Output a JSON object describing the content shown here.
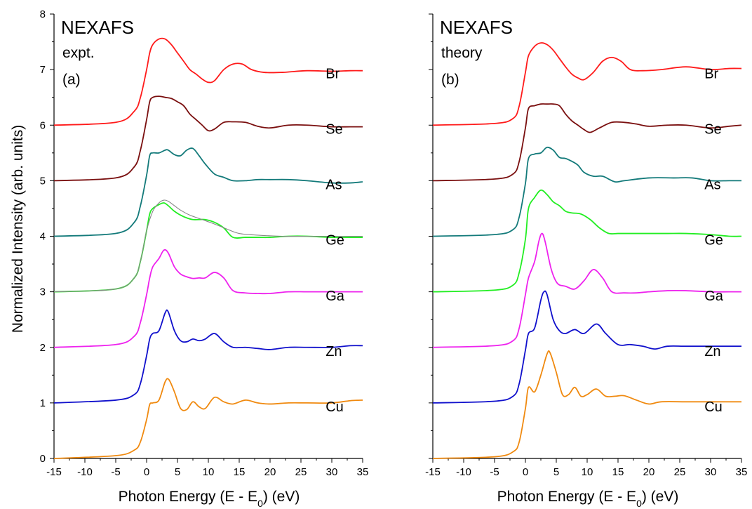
{
  "ylabel": "Normalized Intensity (arb. units)",
  "xlabel_main": "Photon Energy (E - E",
  "xlabel_sub": "0",
  "xlabel_end": ") (eV)",
  "panels": [
    {
      "title": "NEXAFS",
      "subtitle": "expt.",
      "tag": "(a)"
    },
    {
      "title": "NEXAFS",
      "subtitle": "theory",
      "tag": "(b)"
    }
  ],
  "colors": {
    "Br": "#ff1a1a",
    "Se": "#7a0f0f",
    "As": "#137a7a",
    "Ge": "#22ee22",
    "Ga": "#ee22ee",
    "Zn": "#1010cc",
    "Cu": "#f08a10",
    "Ge_ref": "#888888"
  },
  "chart_data": [
    {
      "type": "line",
      "panel": "(a)",
      "xlabel": "Photon Energy (E - E0) (eV)",
      "ylabel": "Normalized Intensity (arb. units)",
      "xlim": [
        -15,
        35
      ],
      "ylim": [
        0,
        8
      ],
      "xticks": [
        -15,
        -10,
        -5,
        0,
        5,
        10,
        15,
        20,
        25,
        30,
        35
      ],
      "yticks": [
        0,
        1,
        2,
        3,
        4,
        5,
        6,
        7,
        8
      ],
      "series": [
        {
          "name": "Cu",
          "offset": 0,
          "x": [
            -15,
            -5,
            -2,
            -1,
            0,
            0.5,
            1,
            2,
            3,
            3.6,
            4.5,
            5.5,
            6.5,
            7.5,
            8.5,
            9.5,
            11,
            12.5,
            14,
            16,
            18,
            20,
            23,
            26,
            30,
            33,
            35
          ],
          "y": [
            0,
            0.05,
            0.15,
            0.3,
            0.7,
            0.97,
            1.0,
            1.05,
            1.38,
            1.42,
            1.2,
            0.9,
            0.88,
            1.02,
            0.93,
            0.9,
            1.1,
            1.02,
            0.98,
            1.05,
            1.0,
            0.98,
            1.0,
            1.0,
            1.0,
            1.04,
            1.05
          ]
        },
        {
          "name": "Zn",
          "offset": 1,
          "x": [
            -15,
            -5,
            -2,
            -1,
            0,
            0.5,
            1,
            2,
            3,
            3.5,
            4.5,
            5.5,
            6.5,
            7.5,
            8.5,
            9.5,
            11,
            12.5,
            14,
            16,
            18,
            20,
            23,
            26,
            30,
            33,
            35
          ],
          "y": [
            1,
            1.05,
            1.15,
            1.35,
            1.85,
            2.15,
            2.25,
            2.3,
            2.62,
            2.64,
            2.3,
            2.12,
            2.1,
            2.15,
            2.12,
            2.15,
            2.25,
            2.1,
            2.0,
            2.0,
            1.98,
            1.96,
            2.0,
            2.0,
            2.0,
            2.03,
            2.03
          ]
        },
        {
          "name": "Ga",
          "offset": 2,
          "x": [
            -15,
            -5,
            -2,
            -1,
            0,
            0.5,
            1,
            2,
            2.8,
            3.5,
            4.5,
            5.5,
            6.5,
            7.5,
            8.5,
            9.5,
            11,
            12.5,
            14,
            16,
            18,
            20,
            23,
            26,
            30,
            33,
            35
          ],
          "y": [
            2,
            2.05,
            2.2,
            2.45,
            2.95,
            3.25,
            3.45,
            3.6,
            3.75,
            3.7,
            3.45,
            3.32,
            3.27,
            3.24,
            3.25,
            3.25,
            3.35,
            3.25,
            3.02,
            2.98,
            2.97,
            2.97,
            3.0,
            3.0,
            3.0,
            3.0,
            3.0
          ]
        },
        {
          "name": "Ge",
          "offset": 3,
          "x": [
            -15,
            -5,
            -2,
            -1,
            0,
            0.5,
            1,
            2,
            2.8,
            3.5,
            4.5,
            5.5,
            6.5,
            7.5,
            8.5,
            9.5,
            11,
            12.5,
            14,
            16,
            18,
            20,
            23,
            26,
            30,
            33,
            35
          ],
          "y": [
            3,
            3.05,
            3.25,
            3.55,
            4.1,
            4.4,
            4.5,
            4.57,
            4.6,
            4.55,
            4.45,
            4.38,
            4.33,
            4.3,
            4.3,
            4.3,
            4.25,
            4.15,
            3.98,
            3.98,
            3.98,
            3.98,
            4.0,
            4.0,
            3.98,
            3.98,
            3.98
          ]
        },
        {
          "name": "Ge ref",
          "offset": 3,
          "x": [
            -15,
            -5,
            -2,
            -1,
            0,
            1,
            2,
            2.8,
            3.5,
            4.5,
            5.5,
            7,
            9,
            11,
            13,
            15,
            18,
            22,
            26,
            30,
            35
          ],
          "y": [
            3,
            3.05,
            3.25,
            3.55,
            4.1,
            4.45,
            4.6,
            4.65,
            4.63,
            4.55,
            4.47,
            4.38,
            4.3,
            4.22,
            4.13,
            4.05,
            4.02,
            4.0,
            4.0,
            4.0,
            4.0
          ]
        },
        {
          "name": "As",
          "offset": 4,
          "x": [
            -15,
            -5,
            -2,
            -1,
            0,
            0.5,
            1,
            2,
            3,
            3.5,
            4.5,
            5.5,
            6.5,
            7.5,
            8.5,
            9.5,
            11,
            12.5,
            14,
            16,
            18,
            20,
            23,
            26,
            30,
            33,
            35
          ],
          "y": [
            4,
            4.05,
            4.25,
            4.55,
            5.1,
            5.45,
            5.5,
            5.5,
            5.55,
            5.55,
            5.47,
            5.45,
            5.55,
            5.58,
            5.45,
            5.3,
            5.12,
            5.06,
            5.0,
            5.0,
            5.02,
            5.02,
            5.02,
            5.0,
            4.96,
            4.96,
            4.98
          ]
        },
        {
          "name": "Se",
          "offset": 5,
          "x": [
            -15,
            -5,
            -2,
            -1,
            0,
            0.5,
            1,
            2,
            3,
            4,
            5,
            6,
            7,
            8,
            9,
            10,
            11,
            12.5,
            14,
            16,
            18,
            20,
            23,
            26,
            30,
            33,
            35
          ],
          "y": [
            5,
            5.05,
            5.25,
            5.55,
            6.1,
            6.42,
            6.5,
            6.52,
            6.5,
            6.48,
            6.42,
            6.35,
            6.2,
            6.1,
            6.0,
            5.9,
            5.93,
            6.05,
            6.06,
            6.05,
            5.98,
            5.95,
            6.0,
            6.0,
            5.97,
            5.97,
            5.97
          ]
        },
        {
          "name": "Br",
          "offset": 6,
          "x": [
            -15,
            -5,
            -2,
            -1,
            0,
            0.5,
            1,
            2,
            3,
            4,
            5,
            6,
            7,
            8,
            9,
            10,
            11,
            12.5,
            14,
            15.5,
            17,
            19,
            22,
            26,
            30,
            33,
            35
          ],
          "y": [
            6,
            6.05,
            6.25,
            6.5,
            7.0,
            7.3,
            7.45,
            7.55,
            7.55,
            7.45,
            7.3,
            7.15,
            7.0,
            6.92,
            6.83,
            6.77,
            6.8,
            7.0,
            7.1,
            7.1,
            7.0,
            6.95,
            6.95,
            6.98,
            6.97,
            6.98,
            6.98
          ]
        }
      ]
    },
    {
      "type": "line",
      "panel": "(b)",
      "xlabel": "Photon Energy (E - E0) (eV)",
      "xlim": [
        -15,
        35
      ],
      "ylim": [
        0,
        8
      ],
      "xticks": [
        -15,
        -10,
        -5,
        0,
        5,
        10,
        15,
        20,
        25,
        30,
        35
      ],
      "yticks": [
        0,
        1,
        2,
        3,
        4,
        5,
        6,
        7,
        8
      ],
      "series": [
        {
          "name": "Cu",
          "offset": 0,
          "x": [
            -15,
            -5,
            -2,
            -1,
            0,
            0.5,
            1.5,
            2.5,
            3.5,
            4,
            5,
            6,
            7,
            8,
            9,
            10,
            11.5,
            13,
            14.5,
            16,
            18,
            20,
            22,
            26,
            30,
            33,
            35
          ],
          "y": [
            0,
            0.03,
            0.12,
            0.3,
            0.9,
            1.28,
            1.2,
            1.5,
            1.88,
            1.9,
            1.55,
            1.15,
            1.15,
            1.28,
            1.12,
            1.15,
            1.25,
            1.12,
            1.12,
            1.13,
            1.05,
            0.98,
            1.02,
            1.02,
            1.02,
            1.02,
            1.02
          ]
        },
        {
          "name": "Zn",
          "offset": 1,
          "x": [
            -15,
            -5,
            -2,
            -1,
            0,
            0.5,
            1.5,
            2.5,
            3,
            3.5,
            4.5,
            5.5,
            6.5,
            8,
            9.5,
            11.5,
            13,
            15,
            17,
            19,
            21,
            23,
            26,
            30,
            33,
            35
          ],
          "y": [
            1,
            1.03,
            1.12,
            1.35,
            1.95,
            2.25,
            2.35,
            2.85,
            3.0,
            2.95,
            2.5,
            2.3,
            2.25,
            2.32,
            2.25,
            2.42,
            2.25,
            2.05,
            2.05,
            2.02,
            1.97,
            2.02,
            2.02,
            2.02,
            2.02,
            2.02
          ]
        },
        {
          "name": "Ga",
          "offset": 2,
          "x": [
            -15,
            -5,
            -2,
            -1,
            0,
            0.5,
            1.5,
            2.2,
            2.7,
            3.2,
            4.2,
            5.2,
            6.5,
            8,
            9.5,
            11,
            12.5,
            14,
            16,
            18,
            20,
            23,
            26,
            30,
            33,
            35
          ],
          "y": [
            2,
            2.03,
            2.12,
            2.35,
            2.95,
            3.25,
            3.55,
            3.92,
            4.05,
            3.9,
            3.4,
            3.15,
            3.1,
            3.05,
            3.2,
            3.4,
            3.25,
            3.0,
            2.98,
            2.98,
            3.0,
            3.02,
            3.02,
            3.0,
            3.0,
            3.0
          ]
        },
        {
          "name": "Ge",
          "offset": 3,
          "x": [
            -15,
            -5,
            -2,
            -1,
            0,
            0.5,
            1.5,
            2.5,
            3.5,
            4.5,
            5.5,
            6.5,
            7.5,
            9,
            10.5,
            12,
            13.5,
            15,
            17,
            20,
            23,
            26,
            30,
            33,
            35
          ],
          "y": [
            3,
            3.03,
            3.12,
            3.35,
            3.95,
            4.5,
            4.7,
            4.83,
            4.75,
            4.62,
            4.55,
            4.45,
            4.42,
            4.4,
            4.3,
            4.15,
            4.05,
            4.05,
            4.05,
            4.05,
            4.05,
            4.05,
            4.03,
            4.0,
            4.0
          ]
        },
        {
          "name": "As",
          "offset": 4,
          "x": [
            -15,
            -5,
            -2,
            -1,
            0,
            0.5,
            1.5,
            2.5,
            3.5,
            4.5,
            5.5,
            6.5,
            7.5,
            8.5,
            9.5,
            11,
            12.5,
            14.5,
            16,
            20,
            24,
            27,
            30,
            33,
            35
          ],
          "y": [
            4,
            4.03,
            4.12,
            4.35,
            4.95,
            5.4,
            5.48,
            5.5,
            5.6,
            5.55,
            5.42,
            5.4,
            5.35,
            5.28,
            5.15,
            5.08,
            5.08,
            4.98,
            5.0,
            5.05,
            5.05,
            5.05,
            5.0,
            5.0,
            5.0
          ]
        },
        {
          "name": "Se",
          "offset": 5,
          "x": [
            -15,
            -5,
            -2,
            -1,
            0,
            0.5,
            1.5,
            2.5,
            3.5,
            4.5,
            5.5,
            6.5,
            7.5,
            8.5,
            9.5,
            10.5,
            12,
            14,
            16,
            18,
            20,
            23,
            26,
            30,
            33,
            35
          ],
          "y": [
            5,
            5.03,
            5.12,
            5.35,
            5.95,
            6.3,
            6.35,
            6.38,
            6.38,
            6.38,
            6.35,
            6.2,
            6.08,
            6.0,
            5.92,
            5.87,
            5.95,
            6.05,
            6.05,
            6.02,
            5.98,
            6.0,
            6.0,
            5.95,
            5.98,
            6.0
          ]
        },
        {
          "name": "Br",
          "offset": 6,
          "x": [
            -15,
            -5,
            -2,
            -1,
            0,
            0.5,
            1.5,
            2.5,
            3.5,
            4.5,
            5.5,
            6.5,
            7.5,
            8.5,
            9.5,
            11,
            12.5,
            14,
            15.5,
            17,
            19,
            22,
            26,
            30,
            33,
            35
          ],
          "y": [
            6,
            6.03,
            6.12,
            6.35,
            6.95,
            7.25,
            7.42,
            7.48,
            7.45,
            7.35,
            7.2,
            7.05,
            6.92,
            6.85,
            6.82,
            6.95,
            7.15,
            7.22,
            7.15,
            7.0,
            6.98,
            7.0,
            7.05,
            7.0,
            7.02,
            7.02
          ]
        }
      ]
    }
  ]
}
